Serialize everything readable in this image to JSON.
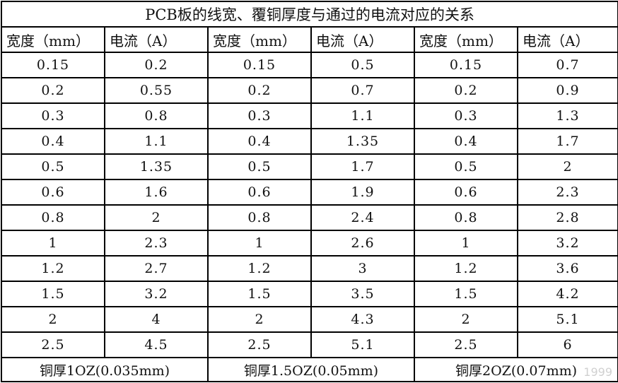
{
  "title": "PCB板的线宽、覆铜厚度与通过的电流对应的关系",
  "headers": [
    "宽度（mm）",
    "电流（A）",
    "宽度（mm）",
    "电流（A）",
    "宽度（mm）",
    "电流（A）"
  ],
  "rows": [
    [
      "0.15",
      "0.2",
      "0.15",
      "0.5",
      "0.15",
      "0.7"
    ],
    [
      "0.2",
      "0.55",
      "0.2",
      "0.7",
      "0.2",
      "0.9"
    ],
    [
      "0.3",
      "0.8",
      "0.3",
      "1.1",
      "0.3",
      "1.3"
    ],
    [
      "0.4",
      "1.1",
      "0.4",
      "1.35",
      "0.4",
      "1.7"
    ],
    [
      "0.5",
      "1.35",
      "0.5",
      "1.7",
      "0.5",
      "2"
    ],
    [
      "0.6",
      "1.6",
      "0.6",
      "1.9",
      "0.6",
      "2.3"
    ],
    [
      "0.8",
      "2",
      "0.8",
      "2.4",
      "0.8",
      "2.8"
    ],
    [
      "1",
      "2.3",
      "1",
      "2.6",
      "1",
      "3.2"
    ],
    [
      "1.2",
      "2.7",
      "1.2",
      "3",
      "1.2",
      "3.6"
    ],
    [
      "1.5",
      "3.2",
      "1.5",
      "3.5",
      "1.5",
      "4.2"
    ],
    [
      "2",
      "4",
      "2",
      "4.3",
      "2",
      "5.1"
    ],
    [
      "2.5",
      "4.5",
      "2.5",
      "5.1",
      "2.5",
      "6"
    ]
  ],
  "footers": [
    "铜厚1OZ(0.035mm)",
    "铜厚1.5OZ(0.05mm)",
    "铜厚2OZ(0.07mm)"
  ],
  "watermark": "1999"
}
